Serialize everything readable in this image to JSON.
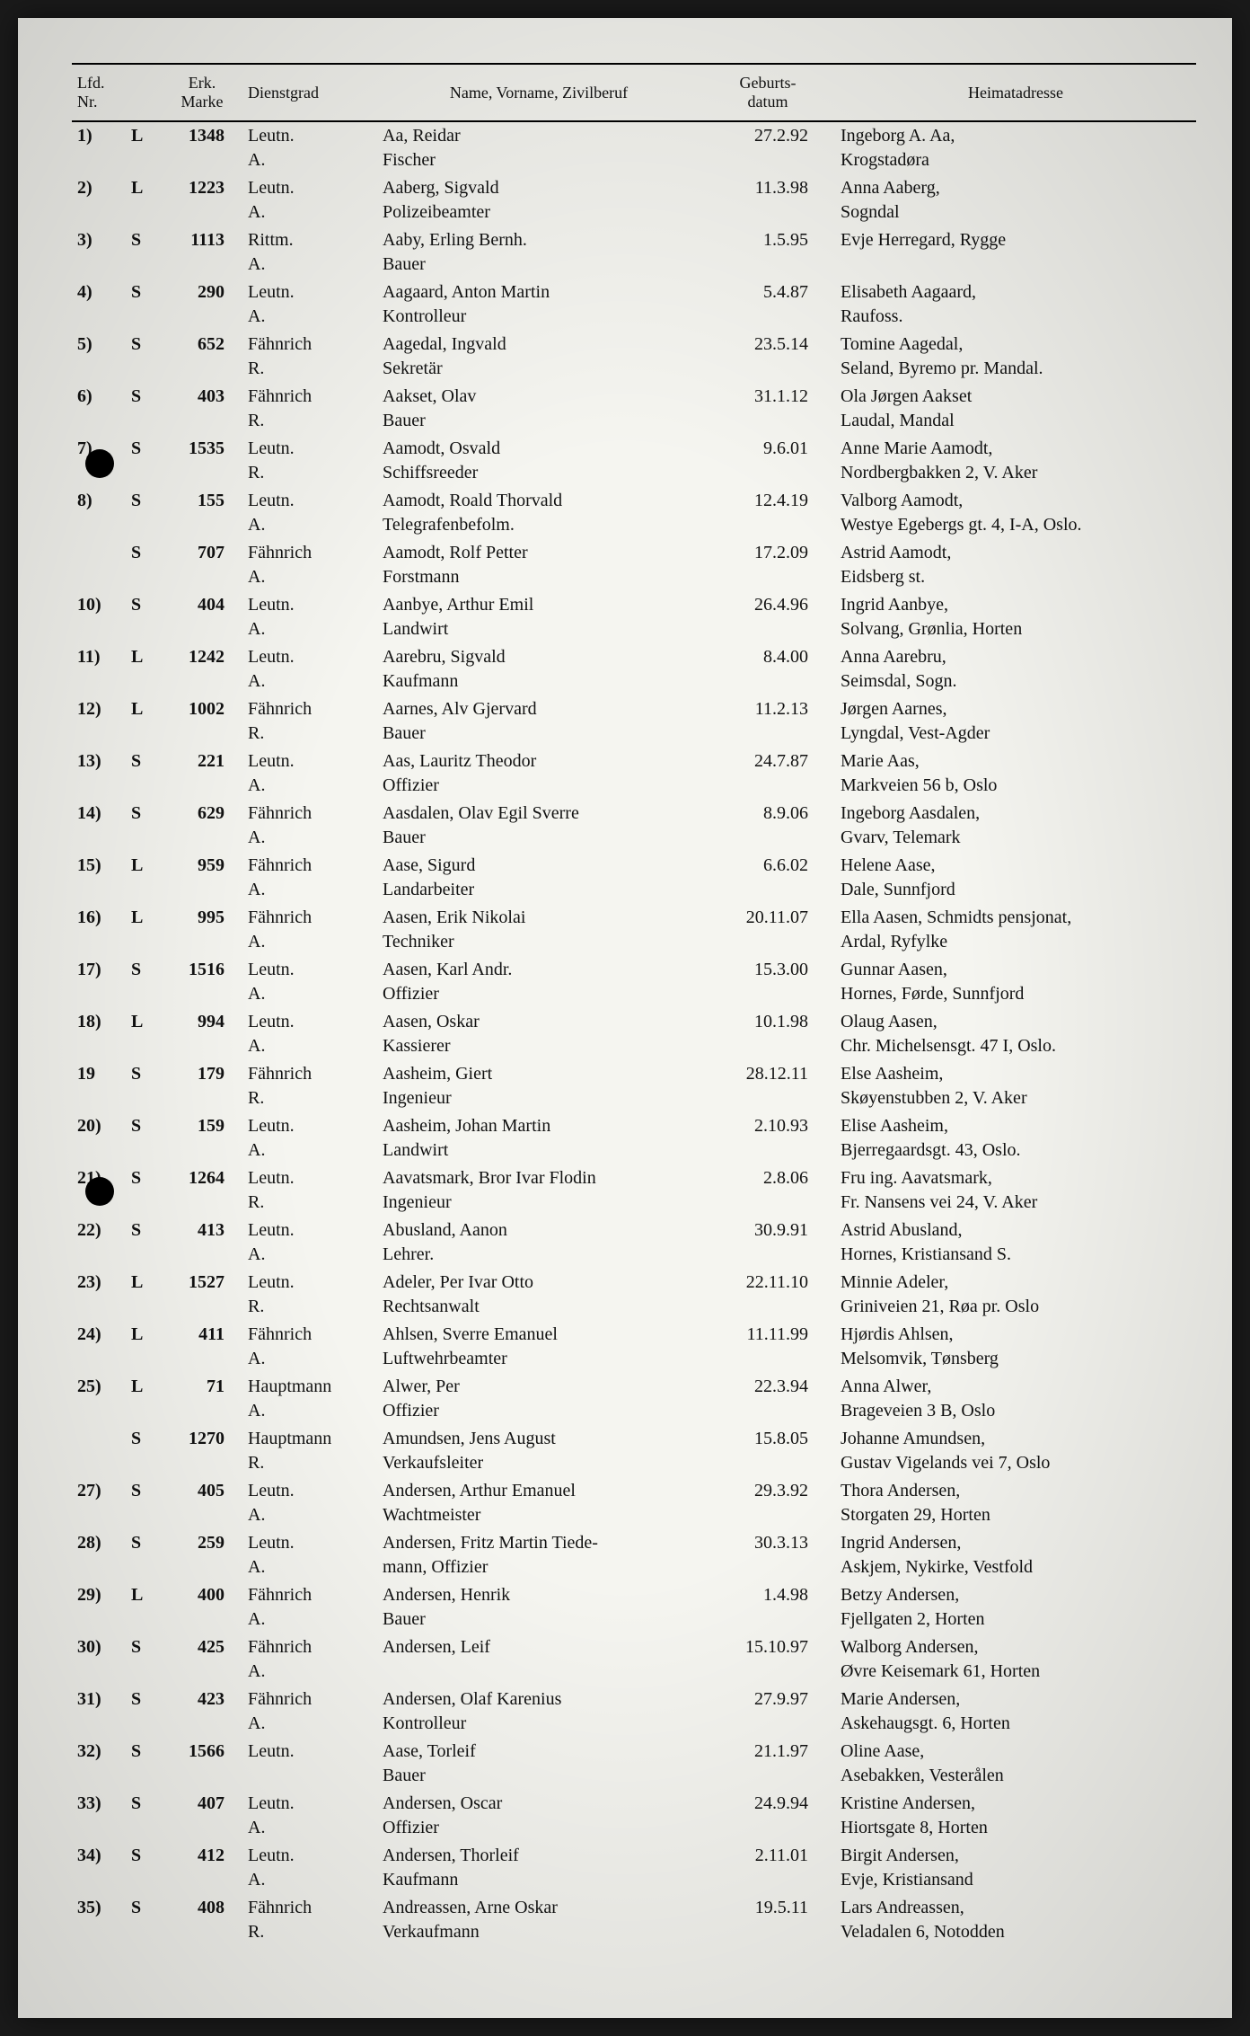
{
  "headers": {
    "nr": "Lfd.\nNr.",
    "erk": "",
    "marke": "Erk.\nMarke",
    "dienst": "Dienstgrad",
    "name": "Name, Vorname, Zivilberuf",
    "datum": "Geburts-\ndatum",
    "heimat": "Heimatadresse"
  },
  "rows": [
    {
      "nr": "1)",
      "erk": "L",
      "marke": "1348",
      "dienst": "Leutn.\nA.",
      "name": "Aa, Reidar\nFischer",
      "datum": "27.2.92",
      "heimat": "Ingeborg A. Aa,\nKrogstadøra"
    },
    {
      "nr": "2)",
      "erk": "L",
      "marke": "1223",
      "dienst": "Leutn.\nA.",
      "name": "Aaberg, Sigvald\nPolizeibeamter",
      "datum": "11.3.98",
      "heimat": "Anna Aaberg,\nSogndal"
    },
    {
      "nr": "3)",
      "erk": "S",
      "marke": "1113",
      "dienst": "Rittm.\nA.",
      "name": "Aaby, Erling Bernh.\nBauer",
      "datum": "1.5.95",
      "heimat": "Evje Herregard, Rygge"
    },
    {
      "nr": "4)",
      "erk": "S",
      "marke": "290",
      "dienst": "Leutn.\nA.",
      "name": "Aagaard, Anton Martin\nKontrolleur",
      "datum": "5.4.87",
      "heimat": "Elisabeth Aagaard,\nRaufoss."
    },
    {
      "nr": "5)",
      "erk": "S",
      "marke": "652",
      "dienst": "Fähnrich\nR.",
      "name": "Aagedal, Ingvald\nSekretär",
      "datum": "23.5.14",
      "heimat": "Tomine Aagedal,\nSeland, Byremo pr. Mandal."
    },
    {
      "nr": "6)",
      "erk": "S",
      "marke": "403",
      "dienst": "Fähnrich\nR.",
      "name": "Aakset, Olav\nBauer",
      "datum": "31.1.12",
      "heimat": "Ola Jørgen Aakset\nLaudal, Mandal"
    },
    {
      "nr": "7)",
      "erk": "S",
      "marke": "1535",
      "dienst": "Leutn.\nR.",
      "name": "Aamodt, Osvald\nSchiffsreeder",
      "datum": "9.6.01",
      "heimat": "Anne Marie Aamodt,\nNordbergbakken 2, V. Aker"
    },
    {
      "nr": "8)",
      "erk": "S",
      "marke": "155",
      "dienst": "Leutn.\nA.",
      "name": "Aamodt, Roald Thorvald\nTelegrafenbefolm.",
      "datum": "12.4.19",
      "heimat": "Valborg Aamodt,\nWestye Egebergs gt. 4, I-A, Oslo."
    },
    {
      "nr": "",
      "erk": "S",
      "marke": "707",
      "dienst": "Fähnrich\nA.",
      "name": "Aamodt, Rolf Petter\nForstmann",
      "datum": "17.2.09",
      "heimat": "Astrid Aamodt,\nEidsberg st."
    },
    {
      "nr": "10)",
      "erk": "S",
      "marke": "404",
      "dienst": "Leutn.\nA.",
      "name": "Aanbye, Arthur Emil\nLandwirt",
      "datum": "26.4.96",
      "heimat": "Ingrid Aanbye,\nSolvang, Grønlia, Horten"
    },
    {
      "nr": "11)",
      "erk": "L",
      "marke": "1242",
      "dienst": "Leutn.\nA.",
      "name": "Aarebru, Sigvald\nKaufmann",
      "datum": "8.4.00",
      "heimat": "Anna Aarebru,\nSeimsdal, Sogn."
    },
    {
      "nr": "12)",
      "erk": "L",
      "marke": "1002",
      "dienst": "Fähnrich\nR.",
      "name": "Aarnes, Alv Gjervard\nBauer",
      "datum": "11.2.13",
      "heimat": "Jørgen Aarnes,\nLyngdal, Vest-Agder"
    },
    {
      "nr": "13)",
      "erk": "S",
      "marke": "221",
      "dienst": "Leutn.\nA.",
      "name": "Aas, Lauritz Theodor\nOffizier",
      "datum": "24.7.87",
      "heimat": "Marie Aas,\nMarkveien 56 b, Oslo"
    },
    {
      "nr": "14)",
      "erk": "S",
      "marke": "629",
      "dienst": "Fähnrich\nA.",
      "name": "Aasdalen, Olav Egil Sverre\nBauer",
      "datum": "8.9.06",
      "heimat": "Ingeborg Aasdalen,\nGvarv, Telemark"
    },
    {
      "nr": "15)",
      "erk": "L",
      "marke": "959",
      "dienst": "Fähnrich\nA.",
      "name": "Aase, Sigurd\nLandarbeiter",
      "datum": "6.6.02",
      "heimat": "Helene Aase,\nDale, Sunnfjord"
    },
    {
      "nr": "16)",
      "erk": "L",
      "marke": "995",
      "dienst": "Fähnrich\nA.",
      "name": "Aasen, Erik Nikolai\nTechniker",
      "datum": "20.11.07",
      "heimat": "Ella Aasen, Schmidts pensjonat,\nArdal, Ryfylke"
    },
    {
      "nr": "17)",
      "erk": "S",
      "marke": "1516",
      "dienst": "Leutn.\nA.",
      "name": "Aasen, Karl Andr.\nOffizier",
      "datum": "15.3.00",
      "heimat": "Gunnar Aasen,\nHornes, Førde, Sunnfjord"
    },
    {
      "nr": "18)",
      "erk": "L",
      "marke": "994",
      "dienst": "Leutn.\nA.",
      "name": "Aasen, Oskar\nKassierer",
      "datum": "10.1.98",
      "heimat": "Olaug Aasen,\nChr. Michelsensgt. 47 I, Oslo."
    },
    {
      "nr": "19",
      "erk": "S",
      "marke": "179",
      "dienst": "Fähnrich\nR.",
      "name": "Aasheim, Giert\nIngenieur",
      "datum": "28.12.11",
      "heimat": "Else Aasheim,\nSkøyenstubben 2, V. Aker"
    },
    {
      "nr": "20)",
      "erk": "S",
      "marke": "159",
      "dienst": "Leutn.\nA.",
      "name": "Aasheim, Johan Martin\nLandwirt",
      "datum": "2.10.93",
      "heimat": "Elise Aasheim,\nBjerregaardsgt. 43, Oslo."
    },
    {
      "nr": "21)",
      "erk": "S",
      "marke": "1264",
      "dienst": "Leutn.\nR.",
      "name": "Aavatsmark, Bror Ivar Flodin\nIngenieur",
      "datum": "2.8.06",
      "heimat": "Fru ing. Aavatsmark,\nFr. Nansens vei 24, V. Aker"
    },
    {
      "nr": "22)",
      "erk": "S",
      "marke": "413",
      "dienst": "Leutn.\nA.",
      "name": "Abusland, Aanon\nLehrer.",
      "datum": "30.9.91",
      "heimat": "Astrid Abusland,\nHornes, Kristiansand S."
    },
    {
      "nr": "23)",
      "erk": "L",
      "marke": "1527",
      "dienst": "Leutn.\nR.",
      "name": "Adeler, Per Ivar Otto\nRechtsanwalt",
      "datum": "22.11.10",
      "heimat": "Minnie Adeler,\nGriniveien 21, Røa pr. Oslo"
    },
    {
      "nr": "24)",
      "erk": "L",
      "marke": "411",
      "dienst": "Fähnrich\nA.",
      "name": "Ahlsen, Sverre Emanuel\nLuftwehrbeamter",
      "datum": "11.11.99",
      "heimat": "Hjørdis Ahlsen,\nMelsomvik, Tønsberg"
    },
    {
      "nr": "25)",
      "erk": "L",
      "marke": "71",
      "dienst": "Hauptmann\nA.",
      "name": "Alwer, Per\nOffizier",
      "datum": "22.3.94",
      "heimat": "Anna Alwer,\nBrageveien 3 B, Oslo"
    },
    {
      "nr": "",
      "erk": "S",
      "marke": "1270",
      "dienst": "Hauptmann\nR.",
      "name": "Amundsen, Jens August\nVerkaufsleiter",
      "datum": "15.8.05",
      "heimat": "Johanne Amundsen,\nGustav Vigelands vei 7, Oslo"
    },
    {
      "nr": "27)",
      "erk": "S",
      "marke": "405",
      "dienst": "Leutn.\nA.",
      "name": "Andersen, Arthur Emanuel\nWachtmeister",
      "datum": "29.3.92",
      "heimat": "Thora Andersen,\nStorgaten 29, Horten"
    },
    {
      "nr": "28)",
      "erk": "S",
      "marke": "259",
      "dienst": "Leutn.\nA.",
      "name": "Andersen, Fritz Martin Tiede-\nmann, Offizier",
      "datum": "30.3.13",
      "heimat": "Ingrid Andersen,\nAskjem, Nykirke, Vestfold"
    },
    {
      "nr": "29)",
      "erk": "L",
      "marke": "400",
      "dienst": "Fähnrich\nA.",
      "name": "Andersen, Henrik\nBauer",
      "datum": "1.4.98",
      "heimat": "Betzy Andersen,\nFjellgaten 2, Horten"
    },
    {
      "nr": "30)",
      "erk": "S",
      "marke": "425",
      "dienst": "Fähnrich\nA.",
      "name": "Andersen, Leif",
      "datum": "15.10.97",
      "heimat": "Walborg Andersen,\nØvre Keisemark 61, Horten"
    },
    {
      "nr": "31)",
      "erk": "S",
      "marke": "423",
      "dienst": "Fähnrich\nA.",
      "name": "Andersen, Olaf Karenius\nKontrolleur",
      "datum": "27.9.97",
      "heimat": "Marie Andersen,\nAskehaugsgt. 6, Horten"
    },
    {
      "nr": "32)",
      "erk": "S",
      "marke": "1566",
      "dienst": "Leutn.",
      "name": "Aase, Torleif\nBauer",
      "datum": "21.1.97",
      "heimat": "Oline Aase,\nAsebakken, Vesterålen"
    },
    {
      "nr": "33)",
      "erk": "S",
      "marke": "407",
      "dienst": "Leutn.\nA.",
      "name": "Andersen, Oscar\nOffizier",
      "datum": "24.9.94",
      "heimat": "Kristine Andersen,\nHiortsgate 8, Horten"
    },
    {
      "nr": "34)",
      "erk": "S",
      "marke": "412",
      "dienst": "Leutn.\nA.",
      "name": "Andersen, Thorleif\nKaufmann",
      "datum": "2.11.01",
      "heimat": "Birgit Andersen,\nEvje, Kristiansand"
    },
    {
      "nr": "35)",
      "erk": "S",
      "marke": "408",
      "dienst": "Fähnrich\nR.",
      "name": "Andreassen, Arne Oskar\nVerkaufmann",
      "datum": "19.5.11",
      "heimat": "Lars Andreassen,\nVeladalen 6, Notodden"
    }
  ]
}
